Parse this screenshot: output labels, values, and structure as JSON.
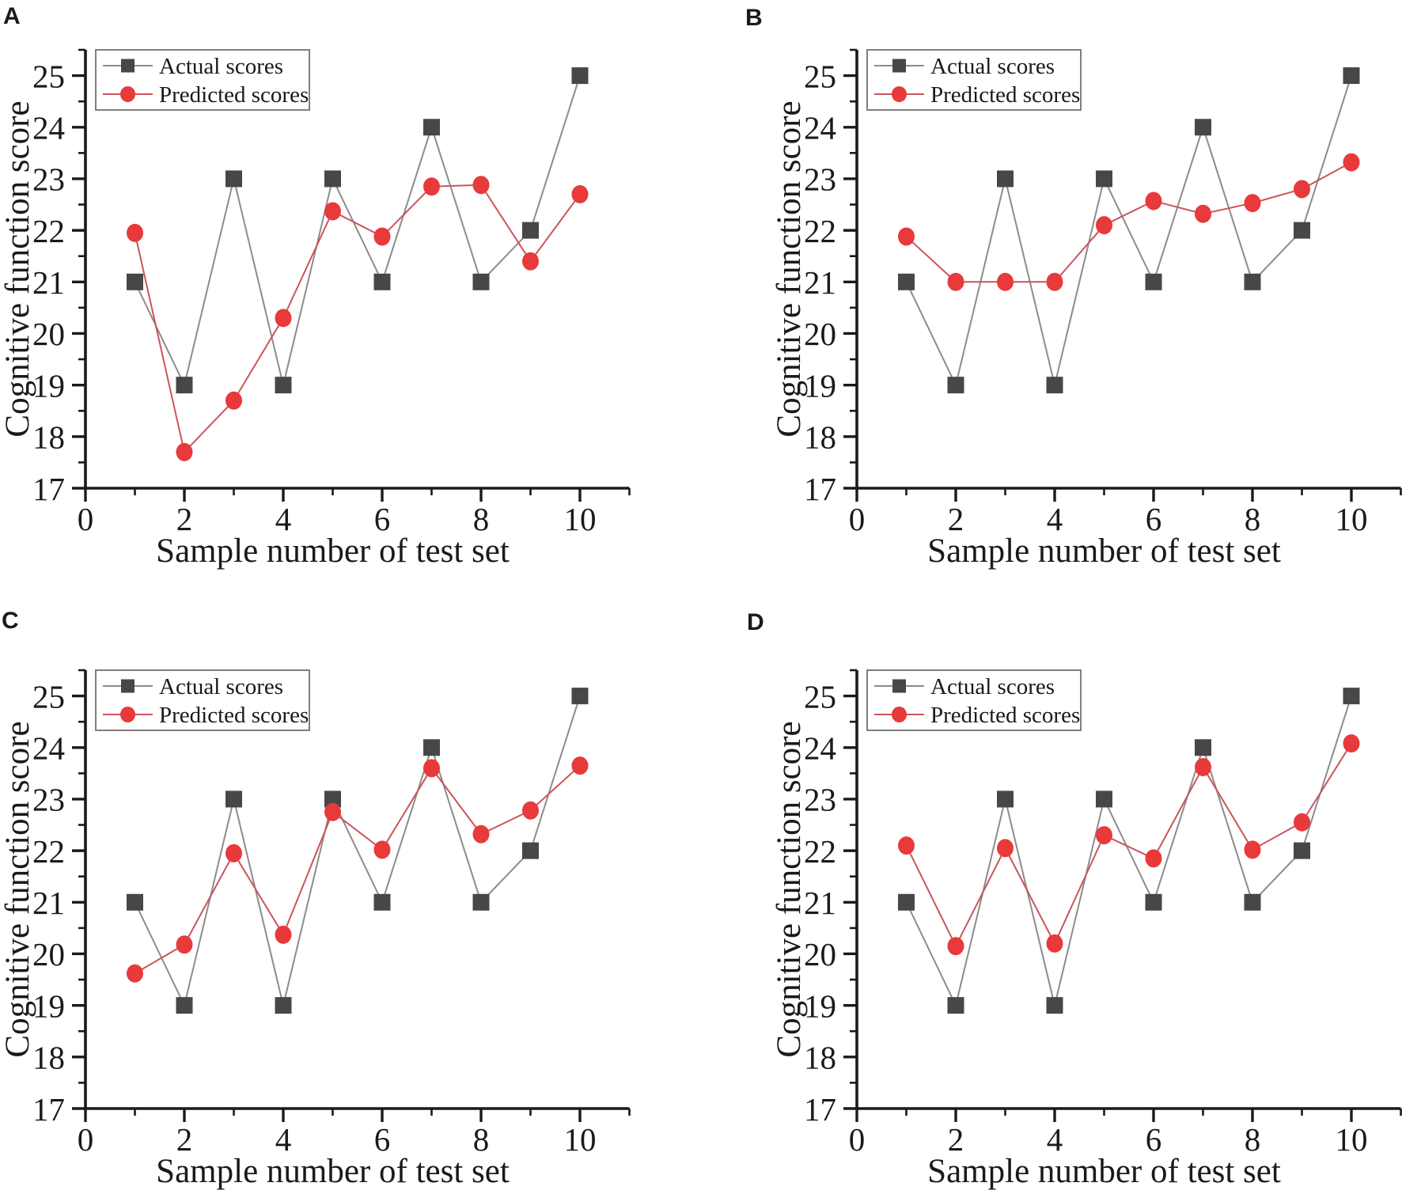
{
  "figure": {
    "background": "#ffffff",
    "panels": [
      "A",
      "B",
      "C",
      "D"
    ]
  },
  "colors": {
    "axis": "#1a1a1a",
    "actual_marker": "#474747",
    "actual_line": "#8c8c8c",
    "predicted_marker": "#e8393b",
    "predicted_line": "#cc545a",
    "legend_border": "#7f7f7f"
  },
  "chart_data": [
    {
      "panel_label": "A",
      "type": "line",
      "xlabel": "Sample number of test set",
      "ylabel": "Cognitive function score",
      "xlim": [
        0,
        11
      ],
      "ylim": [
        17,
        25.5
      ],
      "x_ticks": [
        0,
        2,
        4,
        6,
        8,
        10
      ],
      "y_ticks": [
        17,
        18,
        19,
        20,
        21,
        22,
        23,
        24,
        25
      ],
      "grid": false,
      "legend_position": "top-left",
      "x": [
        1,
        2,
        3,
        4,
        5,
        6,
        7,
        8,
        9,
        10
      ],
      "series": [
        {
          "name": "Actual scores",
          "marker": "square",
          "marker_color": "#474747",
          "line_color": "#8c8c8c",
          "values": [
            21,
            19,
            23,
            19,
            23,
            21,
            24,
            21,
            22,
            25
          ]
        },
        {
          "name": "Predicted scores",
          "marker": "circle",
          "marker_color": "#e8393b",
          "line_color": "#cc545a",
          "values": [
            21.95,
            17.7,
            18.7,
            20.3,
            22.37,
            21.88,
            22.85,
            22.88,
            21.4,
            22.7
          ]
        }
      ]
    },
    {
      "panel_label": "B",
      "type": "line",
      "xlabel": "Sample number of test set",
      "ylabel": "Cognitive function score",
      "xlim": [
        0,
        11
      ],
      "ylim": [
        17,
        25.5
      ],
      "x_ticks": [
        0,
        2,
        4,
        6,
        8,
        10
      ],
      "y_ticks": [
        17,
        18,
        19,
        20,
        21,
        22,
        23,
        24,
        25
      ],
      "grid": false,
      "legend_position": "top-left",
      "x": [
        1,
        2,
        3,
        4,
        5,
        6,
        7,
        8,
        9,
        10
      ],
      "series": [
        {
          "name": "Actual scores",
          "marker": "square",
          "marker_color": "#474747",
          "line_color": "#8c8c8c",
          "values": [
            21,
            19,
            23,
            19,
            23,
            21,
            24,
            21,
            22,
            25
          ]
        },
        {
          "name": "Predicted scores",
          "marker": "circle",
          "marker_color": "#e8393b",
          "line_color": "#cc545a",
          "values": [
            21.88,
            21.0,
            21.0,
            21.0,
            22.1,
            22.57,
            22.32,
            22.53,
            22.8,
            23.32
          ]
        }
      ]
    },
    {
      "panel_label": "C",
      "type": "line",
      "xlabel": "Sample number of test set",
      "ylabel": "Cognitive function score",
      "xlim": [
        0,
        11
      ],
      "ylim": [
        17,
        25.5
      ],
      "x_ticks": [
        0,
        2,
        4,
        6,
        8,
        10
      ],
      "y_ticks": [
        17,
        18,
        19,
        20,
        21,
        22,
        23,
        24,
        25
      ],
      "grid": false,
      "legend_position": "top-left",
      "x": [
        1,
        2,
        3,
        4,
        5,
        6,
        7,
        8,
        9,
        10
      ],
      "series": [
        {
          "name": "Actual scores",
          "marker": "square",
          "marker_color": "#474747",
          "line_color": "#8c8c8c",
          "values": [
            21,
            19,
            23,
            19,
            23,
            21,
            24,
            21,
            22,
            25
          ]
        },
        {
          "name": "Predicted scores",
          "marker": "circle",
          "marker_color": "#e8393b",
          "line_color": "#cc545a",
          "values": [
            19.62,
            20.18,
            21.95,
            20.37,
            22.75,
            22.02,
            23.6,
            22.32,
            22.78,
            23.65
          ]
        }
      ]
    },
    {
      "panel_label": "D",
      "type": "line",
      "xlabel": "Sample number of test set",
      "ylabel": "Cognitive function score",
      "xlim": [
        0,
        11
      ],
      "ylim": [
        17,
        25.5
      ],
      "x_ticks": [
        0,
        2,
        4,
        6,
        8,
        10
      ],
      "y_ticks": [
        17,
        18,
        19,
        20,
        21,
        22,
        23,
        24,
        25
      ],
      "grid": false,
      "legend_position": "top-left",
      "x": [
        1,
        2,
        3,
        4,
        5,
        6,
        7,
        8,
        9,
        10
      ],
      "series": [
        {
          "name": "Actual scores",
          "marker": "square",
          "marker_color": "#474747",
          "line_color": "#8c8c8c",
          "values": [
            21,
            19,
            23,
            19,
            23,
            21,
            24,
            21,
            22,
            25
          ]
        },
        {
          "name": "Predicted scores",
          "marker": "circle",
          "marker_color": "#e8393b",
          "line_color": "#cc545a",
          "values": [
            22.1,
            20.15,
            22.05,
            20.2,
            22.3,
            21.85,
            23.62,
            22.02,
            22.55,
            24.08
          ]
        }
      ]
    }
  ]
}
